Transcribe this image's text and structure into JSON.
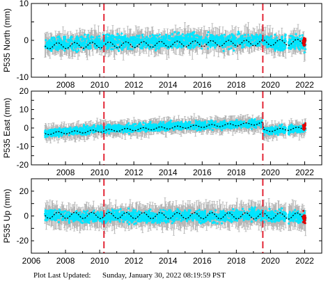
{
  "footer": {
    "label": "Plot Last Updated:",
    "timestamp": "Sunday, January 30, 2022 08:19:59 PST"
  },
  "colors": {
    "error_bars": "#b4b4b4",
    "daily_points": "#00e5ff",
    "model_line": "#000000",
    "rapid_points": "#e00000",
    "event_lines": "#e32636"
  },
  "chart_data": [
    {
      "type": "scatter",
      "ylabel": "P535 North (mm)",
      "xlim": [
        2006,
        2023
      ],
      "ylim": [
        -10,
        10
      ],
      "xticks": [
        2008,
        2010,
        2012,
        2014,
        2016,
        2018,
        2020,
        2022
      ],
      "yticks": [
        -10,
        0,
        10
      ],
      "grid": false,
      "event_lines_x": [
        2010.25,
        2019.55
      ],
      "data_span_x": [
        2006.8,
        2022.05
      ],
      "series": [
        {
          "name": "",
          "role": "daily",
          "x": [
            2006.8,
            2007.5,
            2008.5,
            2009.5,
            2010.5,
            2011.5,
            2012.5,
            2013.5,
            2014.5,
            2015.5,
            2016.5,
            2017.5,
            2018.5,
            2019.5,
            2020.5,
            2021.5,
            2022.0
          ],
          "y": [
            -1.5,
            -1.0,
            -1.0,
            -0.5,
            -0.5,
            -0.5,
            -0.5,
            -0.5,
            0.0,
            0.0,
            0.0,
            -0.5,
            0.0,
            0.0,
            -1.0,
            -0.5,
            -1.0
          ],
          "spread": 2.2,
          "error": 2.5
        },
        {
          "name": "",
          "role": "model",
          "x": [
            2006.8,
            2022.05
          ],
          "y": [
            -1.5,
            -0.5
          ],
          "amp": 0.8
        },
        {
          "name": "",
          "role": "rapid",
          "x_start": 2021.9,
          "x_end": 2022.05,
          "y": -0.3,
          "spread": 1.3
        }
      ]
    },
    {
      "type": "scatter",
      "ylabel": "P535 East (mm)",
      "xlim": [
        2006,
        2023
      ],
      "ylim": [
        -20,
        20
      ],
      "xticks": [
        2008,
        2010,
        2012,
        2014,
        2016,
        2018,
        2020,
        2022
      ],
      "yticks": [
        -20,
        -10,
        0,
        10,
        20
      ],
      "grid": false,
      "event_lines_x": [
        2010.25,
        2019.55
      ],
      "data_span_x": [
        2006.8,
        2022.05
      ],
      "series": [
        {
          "name": "",
          "role": "daily",
          "x": [
            2006.8,
            2008.0,
            2009.0,
            2010.0,
            2011.0,
            2012.0,
            2013.0,
            2014.0,
            2015.0,
            2016.0,
            2017.0,
            2018.0,
            2019.0,
            2019.55,
            2019.6,
            2020.5,
            2021.5,
            2022.0
          ],
          "y": [
            -3.0,
            -2.0,
            -1.5,
            -0.5,
            -0.5,
            0.0,
            0.5,
            1.0,
            1.0,
            1.5,
            1.5,
            2.0,
            2.0,
            2.5,
            -1.5,
            -1.0,
            -0.5,
            0.0
          ],
          "spread": 2.5,
          "error": 3.5
        },
        {
          "name": "",
          "role": "model",
          "x": [
            2006.8,
            2019.55,
            2019.6,
            2022.05
          ],
          "y": [
            -3.0,
            2.5,
            -1.5,
            0.0
          ],
          "amp": 0.7
        },
        {
          "name": "",
          "role": "rapid",
          "x_start": 2021.9,
          "x_end": 2022.05,
          "y": 1.0,
          "spread": 2.0
        }
      ]
    },
    {
      "type": "scatter",
      "ylabel": "P535 Up (mm)",
      "xlim": [
        2006,
        2023
      ],
      "ylim": [
        -30,
        30
      ],
      "xticks": [
        2006,
        2008,
        2010,
        2012,
        2014,
        2016,
        2018,
        2020,
        2022
      ],
      "yticks": [
        -20,
        0,
        20
      ],
      "grid": false,
      "event_lines_x": [
        2010.25,
        2019.55
      ],
      "data_span_x": [
        2006.8,
        2022.05
      ],
      "series": [
        {
          "name": "",
          "role": "daily",
          "x": [
            2006.8,
            2008.0,
            2009.0,
            2010.0,
            2011.0,
            2012.0,
            2013.0,
            2014.0,
            2015.0,
            2016.0,
            2017.0,
            2018.0,
            2019.0,
            2020.0,
            2021.0,
            2022.0
          ],
          "y": [
            1.0,
            0.0,
            -1.0,
            -1.0,
            0.0,
            0.0,
            -1.0,
            0.0,
            0.0,
            0.0,
            0.0,
            0.0,
            1.0,
            0.0,
            0.0,
            -1.0
          ],
          "spread": 5.5,
          "error": 8.0
        },
        {
          "name": "",
          "role": "model",
          "x": [
            2006.8,
            2022.05
          ],
          "y": [
            0.5,
            0.0
          ],
          "amp": 2.5
        },
        {
          "name": "",
          "role": "rapid",
          "x_start": 2021.9,
          "x_end": 2022.05,
          "y": -2.0,
          "spread": 5.0
        }
      ]
    }
  ]
}
